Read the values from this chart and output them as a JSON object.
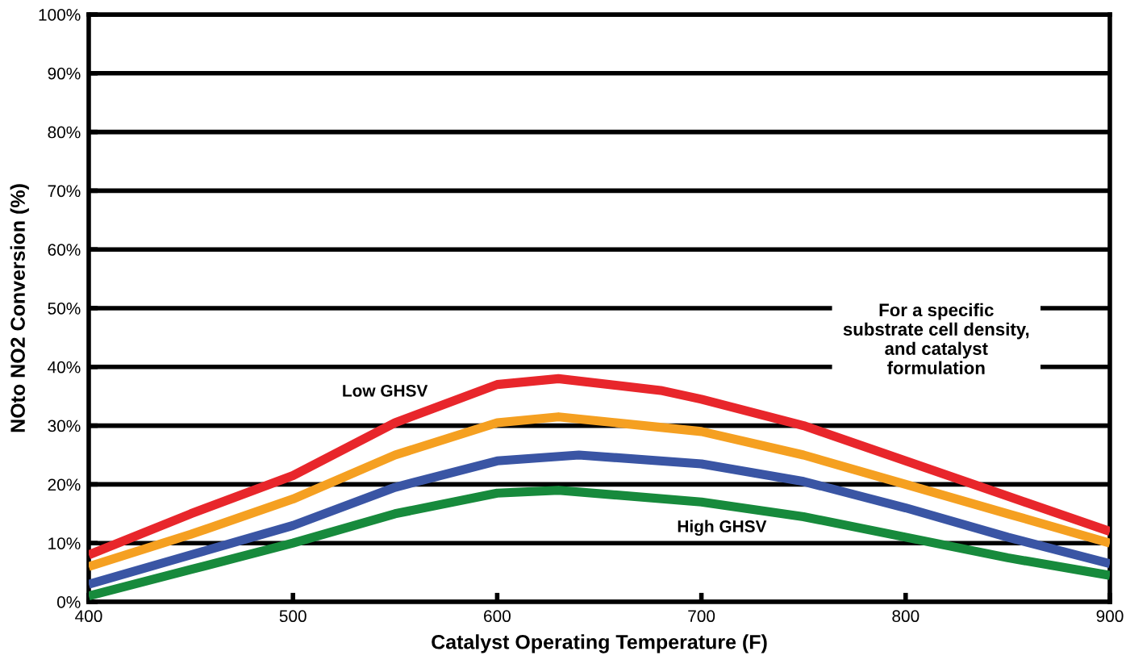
{
  "chart_data": {
    "type": "line",
    "xlabel": "Catalyst Operating Temperature (F)",
    "ylabel": "NOto NO2 Conversion (%)",
    "xlim": [
      400,
      900
    ],
    "xticks": [
      400,
      500,
      600,
      700,
      800,
      900
    ],
    "ylim": [
      0,
      100
    ],
    "yticks": [
      {
        "value": 0,
        "label": "0%"
      },
      {
        "value": 10,
        "label": "10%"
      },
      {
        "value": 20,
        "label": "20%"
      },
      {
        "value": 30,
        "label": "30%"
      },
      {
        "value": 40,
        "label": "40%"
      },
      {
        "value": 50,
        "label": "50%"
      },
      {
        "value": 60,
        "label": "60%"
      },
      {
        "value": 70,
        "label": "70%"
      },
      {
        "value": 80,
        "label": "80%"
      },
      {
        "value": 90,
        "label": "90%"
      },
      {
        "value": 100,
        "label": "100%"
      }
    ],
    "grid": "y",
    "legend": false,
    "marker": "none",
    "line_style": "solid",
    "series": [
      {
        "color": "#e8262b",
        "x": [
          400,
          450,
          500,
          550,
          600,
          630,
          680,
          700,
          750,
          800,
          850,
          900
        ],
        "values": [
          8,
          15,
          21.5,
          30.5,
          37,
          38,
          36,
          34.5,
          30,
          24,
          18,
          12
        ]
      },
      {
        "color": "#f5a021",
        "x": [
          400,
          450,
          500,
          550,
          600,
          630,
          700,
          750,
          800,
          850,
          900
        ],
        "values": [
          6,
          11.5,
          17.5,
          25,
          30.5,
          31.5,
          29,
          25,
          20,
          15,
          10
        ]
      },
      {
        "color": "#3a55a4",
        "x": [
          400,
          450,
          500,
          550,
          600,
          640,
          700,
          750,
          800,
          850,
          900
        ],
        "values": [
          3,
          8,
          13,
          19.5,
          24,
          25,
          23.5,
          20.5,
          16,
          11,
          6.5
        ]
      },
      {
        "color": "#178a3c",
        "x": [
          400,
          450,
          500,
          550,
          600,
          630,
          700,
          750,
          800,
          850,
          900
        ],
        "values": [
          1,
          5.5,
          10,
          15,
          18.5,
          19,
          17,
          14.5,
          11,
          7.5,
          4.5
        ]
      }
    ],
    "annotations": [
      "Low GHSV",
      "High GHSV",
      "For a specific\nsubstrate cell density,\nand catalyst\nformulation"
    ]
  }
}
